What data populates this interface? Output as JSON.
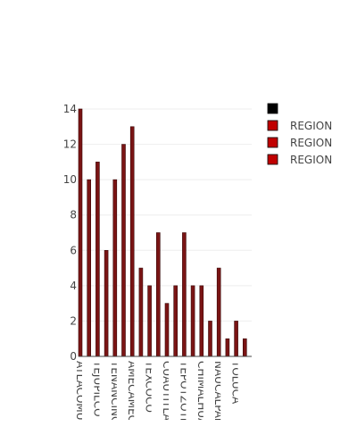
{
  "chart_data": {
    "type": "bar",
    "categories": [
      "ATLACOMULCO",
      "",
      "TEJUPILCO",
      "",
      "TENANCINGO",
      "",
      "AMECAMECA",
      "",
      "TEXCOCO",
      "",
      "CUAUTITLAN",
      "",
      "TEPOTZOTLAN",
      "",
      "CHIMALHUACAN",
      "",
      "NAUCALPAN",
      "",
      "TOLUCA",
      ""
    ],
    "series": [
      {
        "name": "",
        "color": "#7a1414",
        "values": [
          14,
          10,
          11,
          6,
          10,
          12,
          13,
          5,
          4,
          7,
          3,
          4,
          7,
          4,
          4,
          2,
          5,
          1,
          2,
          1
        ]
      }
    ],
    "ylim": [
      0,
      14
    ],
    "yticks": [
      0,
      2,
      4,
      6,
      8,
      10,
      12,
      14
    ],
    "grid": true,
    "legend": {
      "position": "right",
      "entries": [
        {
          "label": "",
          "color": "#000000"
        },
        {
          "label": "REGION",
          "color": "#c00000"
        },
        {
          "label": "REGION",
          "color": "#c00000"
        },
        {
          "label": "REGION",
          "color": "#c00000"
        }
      ]
    }
  }
}
